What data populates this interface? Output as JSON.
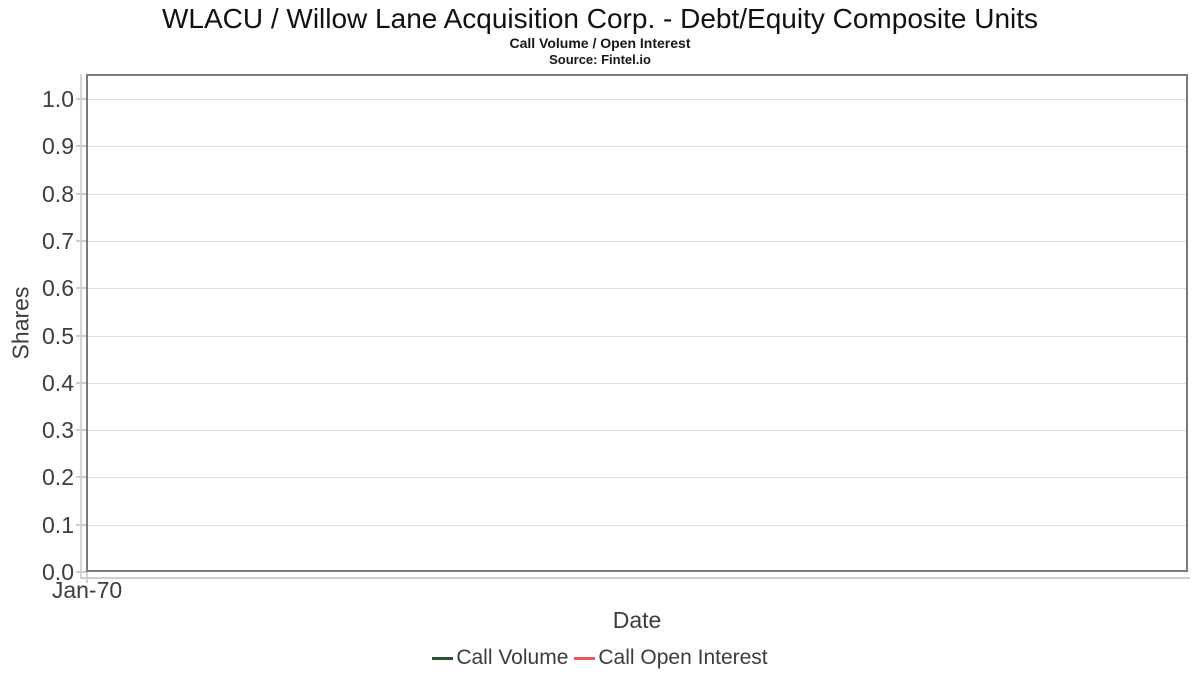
{
  "header": {
    "title": "WLACU / Willow Lane Acquisition Corp. - Debt/Equity Composite Units",
    "subtitle": "Call Volume / Open Interest",
    "source": "Source: Fintel.io"
  },
  "chart_data": {
    "type": "line",
    "title": "WLACU / Willow Lane Acquisition Corp. - Debt/Equity Composite Units",
    "subtitle": "Call Volume / Open Interest",
    "source": "Source: Fintel.io",
    "xlabel": "Date",
    "ylabel": "Shares",
    "x_ticks": [
      "Jan-70"
    ],
    "y_tick_labels": [
      "1.0",
      "0.9",
      "0.8",
      "0.7",
      "0.6",
      "0.5",
      "0.4",
      "0.3",
      "0.2",
      "0.1",
      "0.0"
    ],
    "y_ticks": [
      1.0,
      0.9,
      0.8,
      0.7,
      0.6,
      0.5,
      0.4,
      0.3,
      0.2,
      0.1,
      0.0
    ],
    "ylim": [
      0,
      1.05
    ],
    "grid": "horizontal-light-gray",
    "legend_position": "bottom-center",
    "plot_border_color": "#7a7a7a",
    "gridline_color": "#dedede",
    "series": [
      {
        "name": "Call Volume",
        "color": "#2a5134",
        "x": [],
        "values": []
      },
      {
        "name": "Call Open Interest",
        "color": "#ee5656",
        "x": [],
        "values": []
      }
    ]
  }
}
